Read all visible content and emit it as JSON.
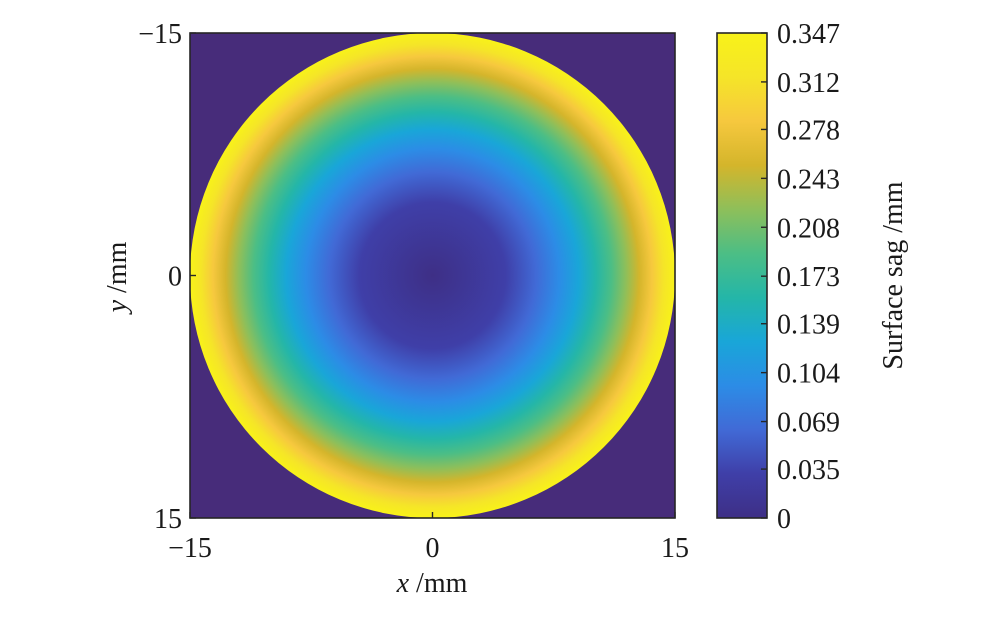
{
  "chart_data": {
    "type": "heatmap",
    "title": "",
    "xlabel_var": "x",
    "xlabel_unit": " /mm",
    "ylabel_var": "y",
    "ylabel_unit": " /mm",
    "x_ticks": [
      "−15",
      "0",
      "15"
    ],
    "y_ticks": [
      "−15",
      "0",
      "15"
    ],
    "xlim": [
      -15,
      15
    ],
    "ylim": [
      -15,
      15
    ],
    "y_axis_direction": "reversed",
    "aperture_radius": 15,
    "surface": "paraboloid sag, 0 at centre rising to maximum at the aperture edge",
    "sag_max": 0.347,
    "background_value": 0,
    "colorbar": {
      "label": "Surface sag /mm",
      "range": [
        0,
        0.347
      ],
      "ticks": [
        "0",
        "0.035",
        "0.069",
        "0.104",
        "0.139",
        "0.173",
        "0.208",
        "0.243",
        "0.278",
        "0.312",
        "0.347"
      ],
      "colormap": "parula"
    }
  },
  "colors": {
    "background": "#472c7a",
    "parula_stops": [
      "#3e2f86",
      "#3f3fa8",
      "#416ad6",
      "#2c8ce6",
      "#19a6d8",
      "#24b6a8",
      "#4cbe85",
      "#8ebf5a",
      "#d4b52b",
      "#f6c83e",
      "#f5e528",
      "#f8f219"
    ]
  }
}
